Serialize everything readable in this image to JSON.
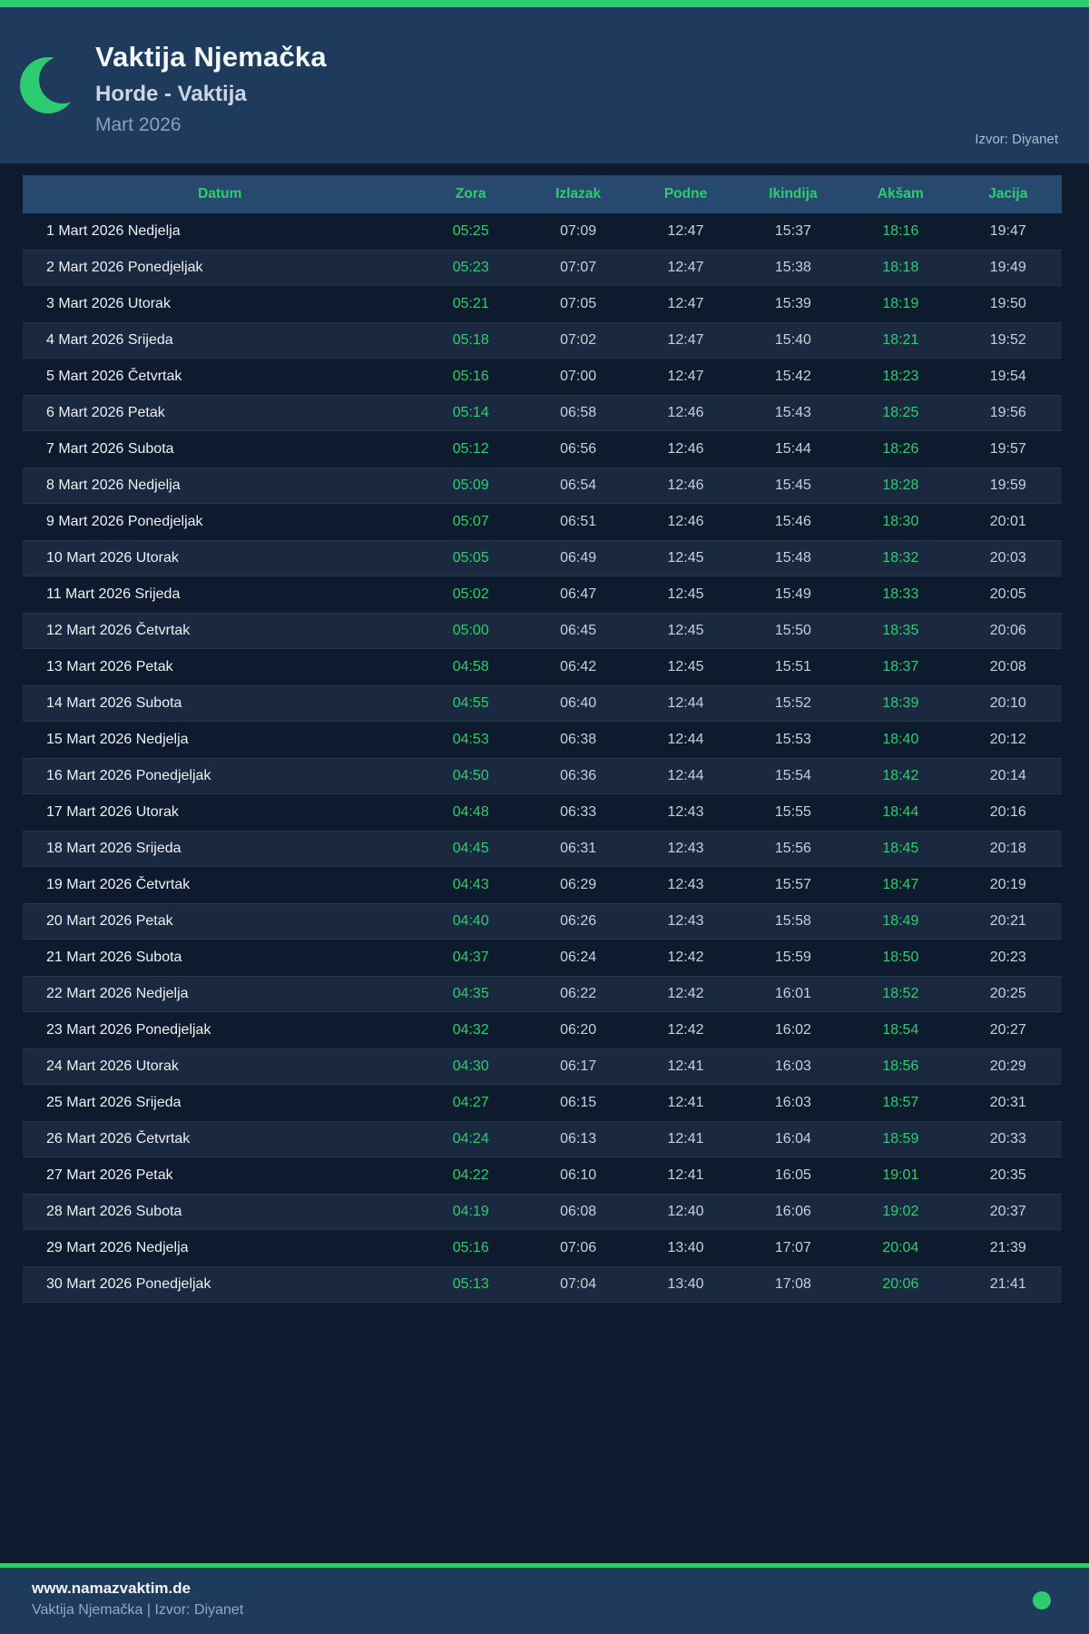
{
  "header": {
    "title": "Vaktija Njemačka",
    "subtitle": "Horde - Vaktija",
    "month": "Mart 2026",
    "source": "Izvor: Diyanet"
  },
  "colors": {
    "accent_green": "#2ecc71",
    "header_bg": "#1e3a5c",
    "page_bg": "#0e1b2e",
    "row_alt_bg": "#1a2940",
    "table_header_bg": "#26496d",
    "time_text": "#c7d0d9",
    "date_text": "#edf0f3"
  },
  "table": {
    "columns": [
      "Datum",
      "Zora",
      "Izlazak",
      "Podne",
      "Ikindija",
      "Akšam",
      "Jacija"
    ],
    "green_columns": [
      "Zora",
      "Akšam"
    ],
    "rows": [
      [
        "1 Mart 2026 Nedjelja",
        "05:25",
        "07:09",
        "12:47",
        "15:37",
        "18:16",
        "19:47"
      ],
      [
        "2 Mart 2026 Ponedjeljak",
        "05:23",
        "07:07",
        "12:47",
        "15:38",
        "18:18",
        "19:49"
      ],
      [
        "3 Mart 2026 Utorak",
        "05:21",
        "07:05",
        "12:47",
        "15:39",
        "18:19",
        "19:50"
      ],
      [
        "4 Mart 2026 Srijeda",
        "05:18",
        "07:02",
        "12:47",
        "15:40",
        "18:21",
        "19:52"
      ],
      [
        "5 Mart 2026 Četvrtak",
        "05:16",
        "07:00",
        "12:47",
        "15:42",
        "18:23",
        "19:54"
      ],
      [
        "6 Mart 2026 Petak",
        "05:14",
        "06:58",
        "12:46",
        "15:43",
        "18:25",
        "19:56"
      ],
      [
        "7 Mart 2026 Subota",
        "05:12",
        "06:56",
        "12:46",
        "15:44",
        "18:26",
        "19:57"
      ],
      [
        "8 Mart 2026 Nedjelja",
        "05:09",
        "06:54",
        "12:46",
        "15:45",
        "18:28",
        "19:59"
      ],
      [
        "9 Mart 2026 Ponedjeljak",
        "05:07",
        "06:51",
        "12:46",
        "15:46",
        "18:30",
        "20:01"
      ],
      [
        "10 Mart 2026 Utorak",
        "05:05",
        "06:49",
        "12:45",
        "15:48",
        "18:32",
        "20:03"
      ],
      [
        "11 Mart 2026 Srijeda",
        "05:02",
        "06:47",
        "12:45",
        "15:49",
        "18:33",
        "20:05"
      ],
      [
        "12 Mart 2026 Četvrtak",
        "05:00",
        "06:45",
        "12:45",
        "15:50",
        "18:35",
        "20:06"
      ],
      [
        "13 Mart 2026 Petak",
        "04:58",
        "06:42",
        "12:45",
        "15:51",
        "18:37",
        "20:08"
      ],
      [
        "14 Mart 2026 Subota",
        "04:55",
        "06:40",
        "12:44",
        "15:52",
        "18:39",
        "20:10"
      ],
      [
        "15 Mart 2026 Nedjelja",
        "04:53",
        "06:38",
        "12:44",
        "15:53",
        "18:40",
        "20:12"
      ],
      [
        "16 Mart 2026 Ponedjeljak",
        "04:50",
        "06:36",
        "12:44",
        "15:54",
        "18:42",
        "20:14"
      ],
      [
        "17 Mart 2026 Utorak",
        "04:48",
        "06:33",
        "12:43",
        "15:55",
        "18:44",
        "20:16"
      ],
      [
        "18 Mart 2026 Srijeda",
        "04:45",
        "06:31",
        "12:43",
        "15:56",
        "18:45",
        "20:18"
      ],
      [
        "19 Mart 2026 Četvrtak",
        "04:43",
        "06:29",
        "12:43",
        "15:57",
        "18:47",
        "20:19"
      ],
      [
        "20 Mart 2026 Petak",
        "04:40",
        "06:26",
        "12:43",
        "15:58",
        "18:49",
        "20:21"
      ],
      [
        "21 Mart 2026 Subota",
        "04:37",
        "06:24",
        "12:42",
        "15:59",
        "18:50",
        "20:23"
      ],
      [
        "22 Mart 2026 Nedjelja",
        "04:35",
        "06:22",
        "12:42",
        "16:01",
        "18:52",
        "20:25"
      ],
      [
        "23 Mart 2026 Ponedjeljak",
        "04:32",
        "06:20",
        "12:42",
        "16:02",
        "18:54",
        "20:27"
      ],
      [
        "24 Mart 2026 Utorak",
        "04:30",
        "06:17",
        "12:41",
        "16:03",
        "18:56",
        "20:29"
      ],
      [
        "25 Mart 2026 Srijeda",
        "04:27",
        "06:15",
        "12:41",
        "16:03",
        "18:57",
        "20:31"
      ],
      [
        "26 Mart 2026 Četvrtak",
        "04:24",
        "06:13",
        "12:41",
        "16:04",
        "18:59",
        "20:33"
      ],
      [
        "27 Mart 2026 Petak",
        "04:22",
        "06:10",
        "12:41",
        "16:05",
        "19:01",
        "20:35"
      ],
      [
        "28 Mart 2026 Subota",
        "04:19",
        "06:08",
        "12:40",
        "16:06",
        "19:02",
        "20:37"
      ],
      [
        "29 Mart 2026 Nedjelja",
        "05:16",
        "07:06",
        "13:40",
        "17:07",
        "20:04",
        "21:39"
      ],
      [
        "30 Mart 2026 Ponedjeljak",
        "05:13",
        "07:04",
        "13:40",
        "17:08",
        "20:06",
        "21:41"
      ]
    ]
  },
  "footer": {
    "website": "www.namazvaktim.de",
    "tagline": "Vaktija Njemačka | Izvor: Diyanet"
  }
}
